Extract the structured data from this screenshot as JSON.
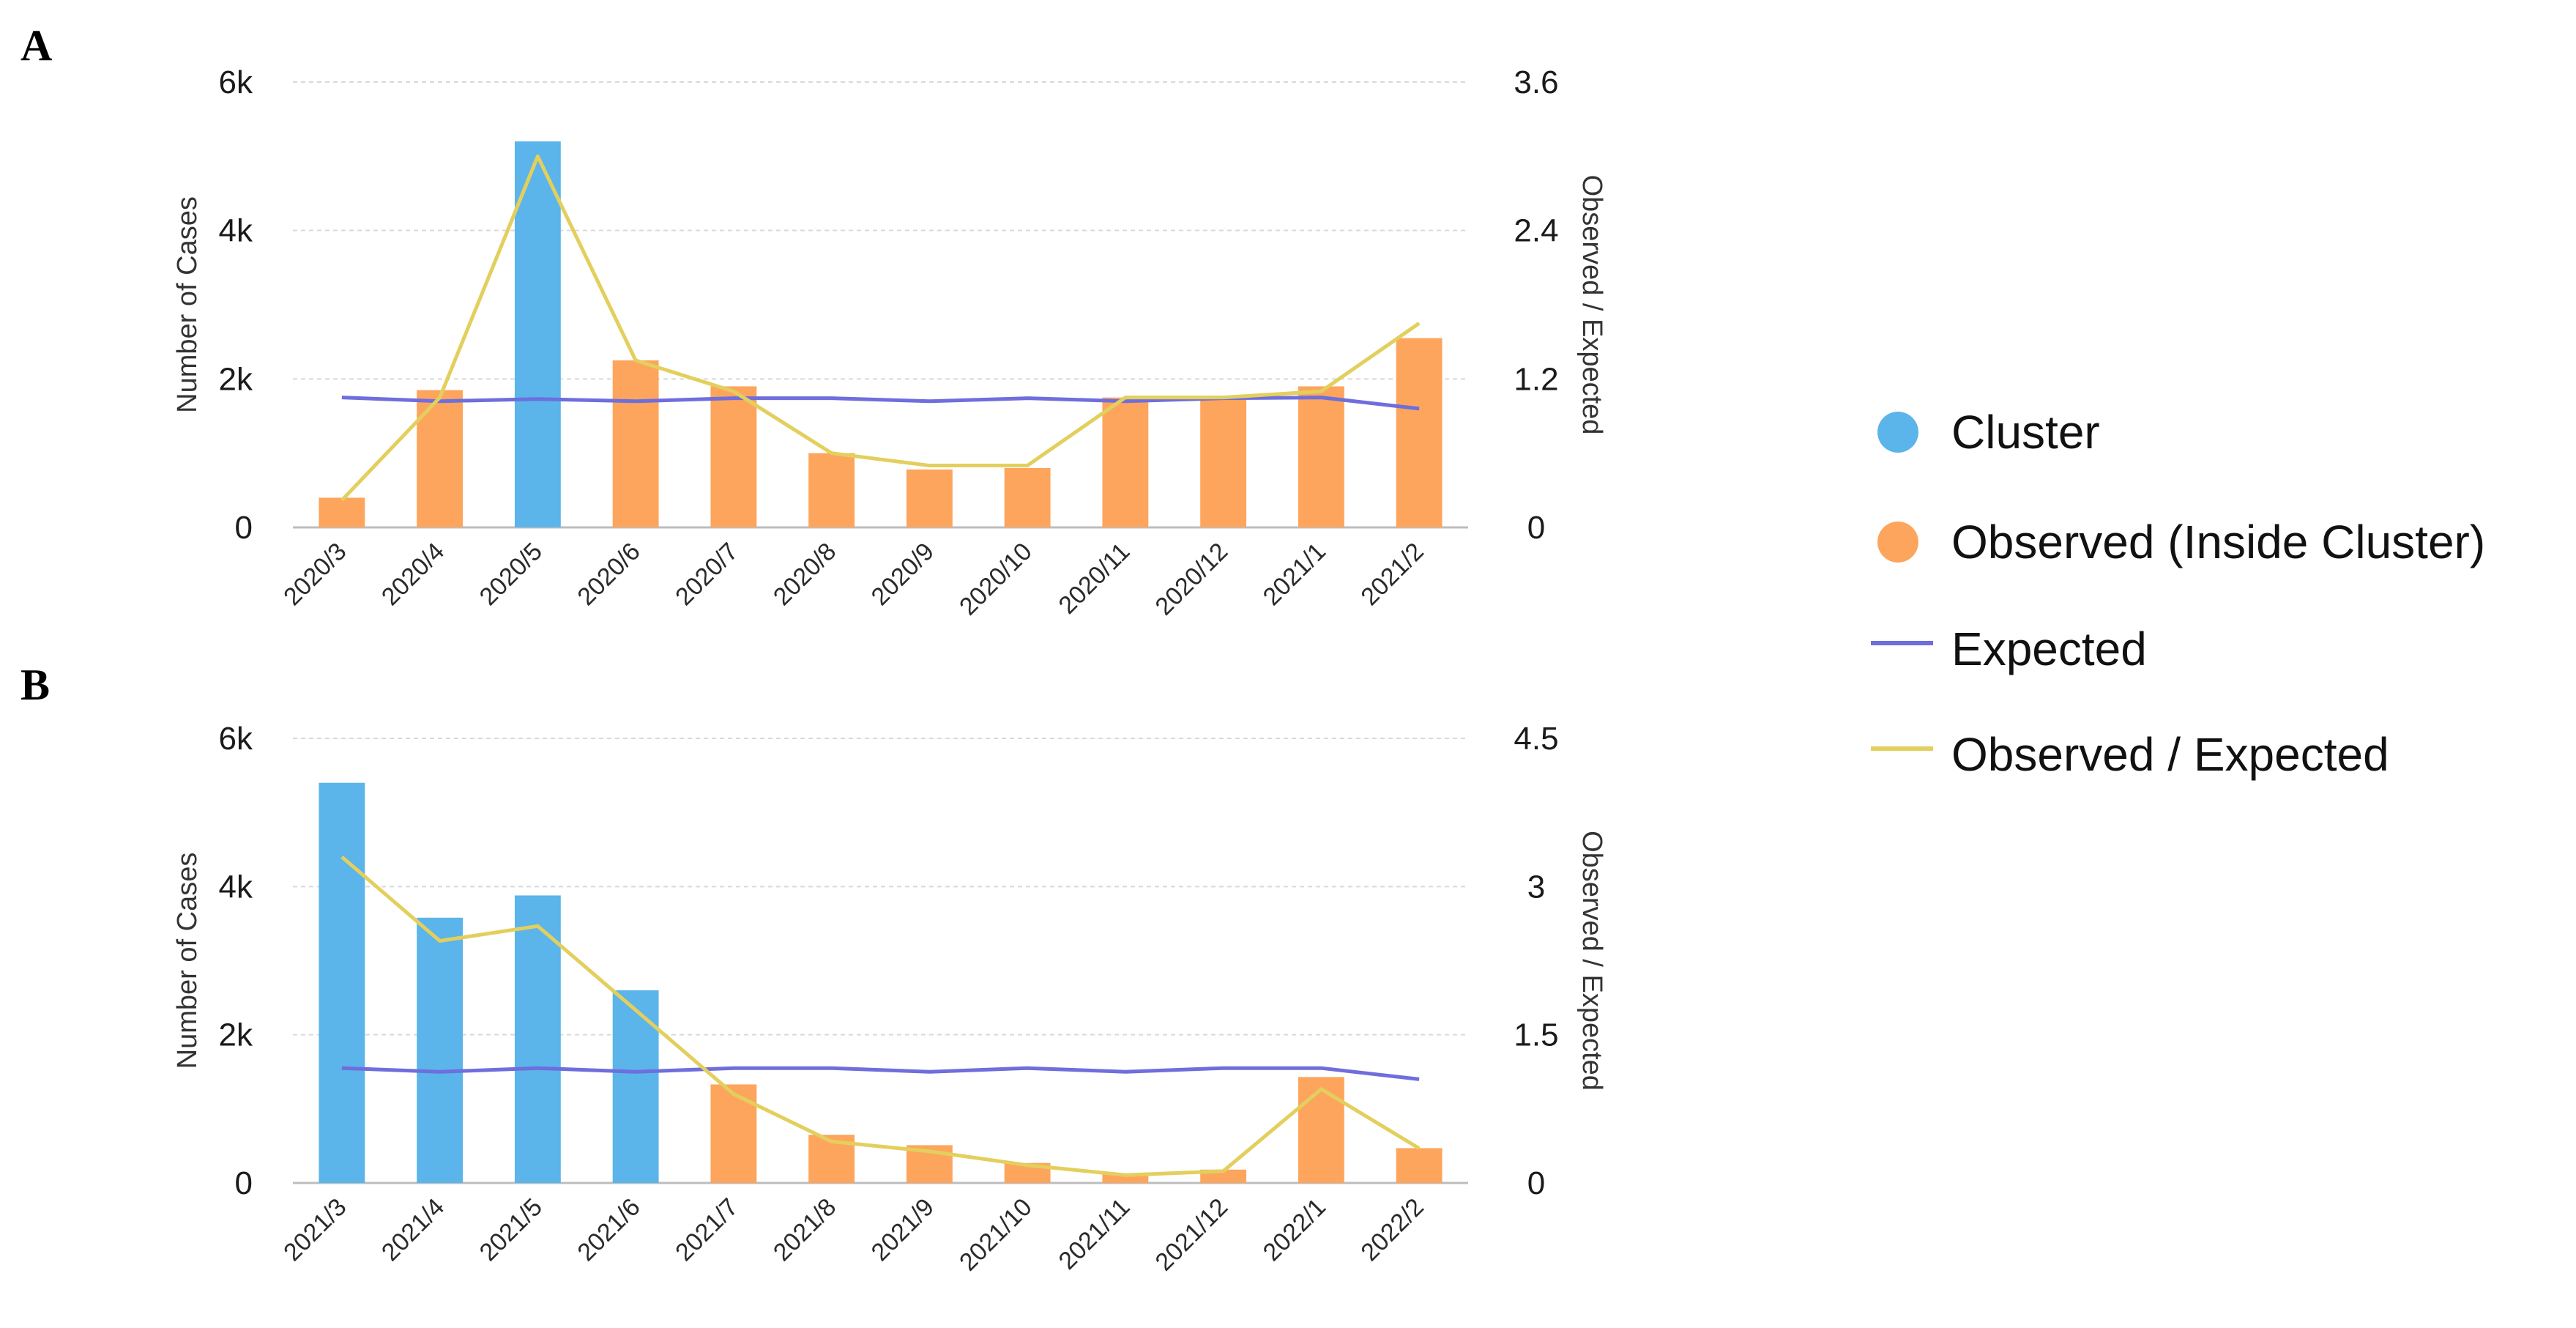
{
  "colors": {
    "cluster": "#5BB4EA",
    "observed": "#FDA55C",
    "expected": "#6E6EDC",
    "ratio": "#E3CF5D",
    "grid": "#D9D9D9",
    "axis": "#BDBDBD"
  },
  "legend": {
    "items": [
      {
        "label": "Cluster",
        "kind": "dot",
        "color_key": "cluster"
      },
      {
        "label": "Observed (Inside Cluster)",
        "kind": "dot",
        "color_key": "observed"
      },
      {
        "label": "Expected",
        "kind": "line",
        "color_key": "expected"
      },
      {
        "label": "Observed / Expected",
        "kind": "line",
        "color_key": "ratio"
      }
    ]
  },
  "chart_data": [
    {
      "panel": "A",
      "type": "bar",
      "categories": [
        "2020/3",
        "2020/4",
        "2020/5",
        "2020/6",
        "2020/7",
        "2020/8",
        "2020/9",
        "2020/10",
        "2020/11",
        "2020/12",
        "2021/1",
        "2021/2"
      ],
      "bar_values": [
        400,
        1850,
        5200,
        2250,
        1900,
        1000,
        780,
        800,
        1750,
        1750,
        1900,
        2550
      ],
      "bar_groups": [
        "observed",
        "observed",
        "cluster",
        "observed",
        "observed",
        "observed",
        "observed",
        "observed",
        "observed",
        "observed",
        "observed",
        "observed"
      ],
      "expected": [
        1750,
        1700,
        1730,
        1700,
        1740,
        1740,
        1700,
        1740,
        1700,
        1740,
        1750,
        1600
      ],
      "observed_expected": [
        0.22,
        1.05,
        3.0,
        1.35,
        1.1,
        0.6,
        0.5,
        0.5,
        1.05,
        1.05,
        1.1,
        1.65
      ],
      "ylabel": "Number of Cases",
      "y2label": "Observed / Expected",
      "ylim": [
        0,
        6000
      ],
      "y_ticks": [
        0,
        2000,
        4000,
        6000
      ],
      "y_tick_labels": [
        "0",
        "2k",
        "4k",
        "6k"
      ],
      "y2lim": [
        0,
        3.6
      ],
      "y2_ticks": [
        0,
        1.2,
        2.4,
        3.6
      ],
      "y2_tick_labels": [
        "0",
        "1.2",
        "2.4",
        "3.6"
      ],
      "grid": true
    },
    {
      "panel": "B",
      "type": "bar",
      "categories": [
        "2021/3",
        "2021/4",
        "2021/5",
        "2021/6",
        "2021/7",
        "2021/8",
        "2021/9",
        "2021/10",
        "2021/11",
        "2021/12",
        "2022/1",
        "2022/2"
      ],
      "bar_values": [
        5400,
        3580,
        3880,
        2600,
        1330,
        650,
        510,
        270,
        120,
        180,
        1430,
        470
      ],
      "bar_groups": [
        "cluster",
        "cluster",
        "cluster",
        "cluster",
        "observed",
        "observed",
        "observed",
        "observed",
        "observed",
        "observed",
        "observed",
        "observed"
      ],
      "expected": [
        1550,
        1500,
        1550,
        1500,
        1550,
        1550,
        1500,
        1550,
        1500,
        1550,
        1550,
        1400
      ],
      "observed_expected": [
        3.3,
        2.45,
        2.6,
        1.75,
        0.9,
        0.42,
        0.32,
        0.18,
        0.08,
        0.12,
        0.95,
        0.35
      ],
      "ylabel": "Number of Cases",
      "y2label": "Observed / Expected",
      "ylim": [
        0,
        6000
      ],
      "y_ticks": [
        0,
        2000,
        4000,
        6000
      ],
      "y_tick_labels": [
        "0",
        "2k",
        "4k",
        "6k"
      ],
      "y2lim": [
        0,
        4.5
      ],
      "y2_ticks": [
        0,
        1.5,
        3,
        4.5
      ],
      "y2_tick_labels": [
        "0",
        "1.5",
        "3",
        "4.5"
      ],
      "grid": true
    }
  ]
}
